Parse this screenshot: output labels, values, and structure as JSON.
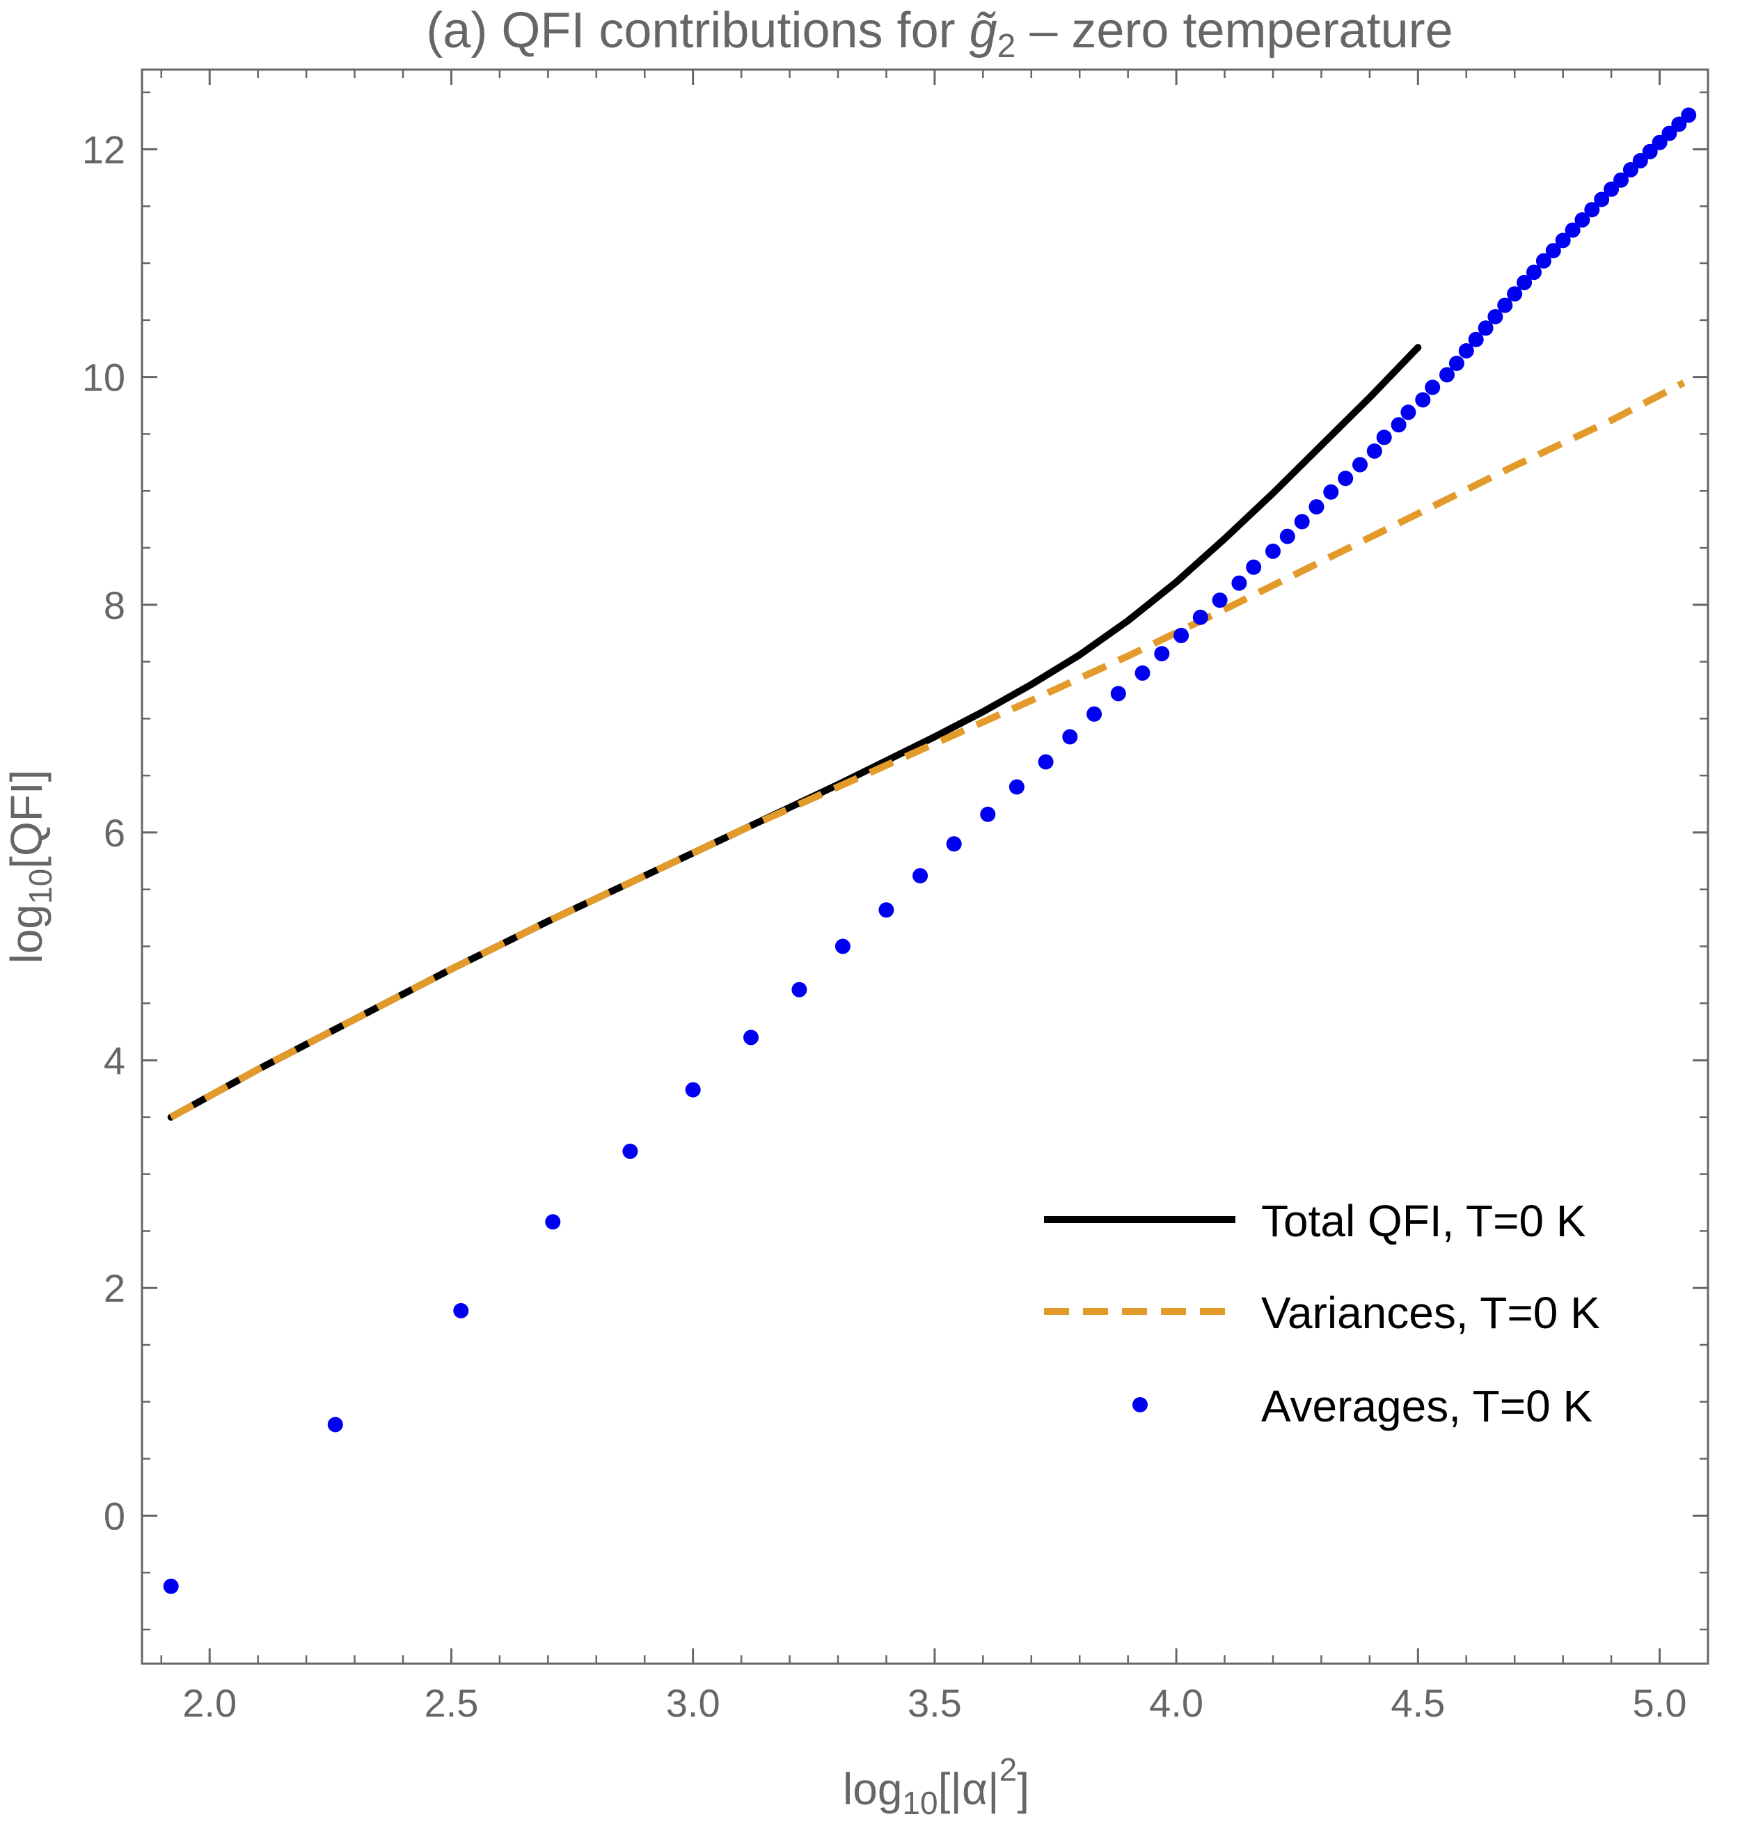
{
  "chart_data": {
    "type": "line",
    "title": "(a) QFI contributions for g̃₂ – zero temperature",
    "title_parts": {
      "prefix": "(a) QFI contributions for ",
      "symbol": "g̃",
      "subscript": "2",
      "suffix": " – zero temperature"
    },
    "xlabel": "log10[|α|2]",
    "xlabel_parts": {
      "pre": "log",
      "sub": "10",
      "mid": "[|α|",
      "sup": "2",
      "post": "]"
    },
    "ylabel": "log10[QFI]",
    "ylabel_parts": {
      "pre": "log",
      "sub": "10",
      "post": "[QFI]"
    },
    "xlim": [
      1.86,
      5.1
    ],
    "ylim": [
      -1.3,
      12.7
    ],
    "xticks": [
      2.0,
      2.5,
      3.0,
      3.5,
      4.0,
      4.5,
      5.0
    ],
    "xtick_labels": [
      "2.0",
      "2.5",
      "3.0",
      "3.5",
      "4.0",
      "4.5",
      "5.0"
    ],
    "yticks": [
      0,
      2,
      4,
      6,
      8,
      10,
      12
    ],
    "ytick_labels": [
      "0",
      "2",
      "4",
      "6",
      "8",
      "10",
      "12"
    ],
    "legend_position": "bottom-right",
    "series": [
      {
        "name": "Total QFI, T=0 K",
        "style": "solid",
        "color": "#000000",
        "x": [
          1.92,
          2.1,
          2.3,
          2.5,
          2.7,
          2.9,
          3.1,
          3.3,
          3.5,
          3.6,
          3.7,
          3.8,
          3.9,
          4.0,
          4.1,
          4.2,
          4.3,
          4.4,
          4.5
        ],
        "y": [
          3.5,
          3.92,
          4.36,
          4.8,
          5.22,
          5.62,
          6.02,
          6.42,
          6.84,
          7.06,
          7.3,
          7.56,
          7.86,
          8.2,
          8.58,
          8.98,
          9.4,
          9.82,
          10.26
        ]
      },
      {
        "name": "Variances, T=0 K",
        "style": "dashed",
        "color": "#E29A2A",
        "x": [
          1.92,
          2.1,
          2.3,
          2.5,
          2.7,
          2.9,
          3.1,
          3.3,
          3.5,
          3.7,
          3.9,
          4.1,
          4.3,
          4.5,
          4.7,
          4.9,
          5.05
        ],
        "y": [
          3.5,
          3.92,
          4.36,
          4.8,
          5.22,
          5.62,
          6.02,
          6.4,
          6.78,
          7.16,
          7.55,
          7.96,
          8.38,
          8.8,
          9.22,
          9.62,
          9.95
        ]
      },
      {
        "name": "Averages, T=0 K",
        "style": "points",
        "color": "#0000F0",
        "x": [
          1.92,
          2.26,
          2.52,
          2.71,
          2.87,
          3.0,
          3.12,
          3.22,
          3.31,
          3.4,
          3.47,
          3.54,
          3.61,
          3.67,
          3.73,
          3.78,
          3.83,
          3.88,
          3.93,
          3.97,
          4.01,
          4.05,
          4.09,
          4.13,
          4.16,
          4.2,
          4.23,
          4.26,
          4.29,
          4.32,
          4.35,
          4.38,
          4.41,
          4.43,
          4.46,
          4.48,
          4.51,
          4.53,
          4.56,
          4.58,
          4.6,
          4.62,
          4.64,
          4.66,
          4.68,
          4.7,
          4.72,
          4.74,
          4.76,
          4.78,
          4.8,
          4.82,
          4.84,
          4.86,
          4.88,
          4.9,
          4.92,
          4.94,
          4.96,
          4.98,
          5.0,
          5.02,
          5.04,
          5.06
        ],
        "y": [
          -0.62,
          0.8,
          1.8,
          2.58,
          3.2,
          3.74,
          4.2,
          4.62,
          5.0,
          5.32,
          5.62,
          5.9,
          6.16,
          6.4,
          6.62,
          6.84,
          7.04,
          7.22,
          7.4,
          7.57,
          7.73,
          7.89,
          8.04,
          8.19,
          8.33,
          8.47,
          8.6,
          8.73,
          8.86,
          8.99,
          9.11,
          9.23,
          9.35,
          9.47,
          9.58,
          9.69,
          9.8,
          9.91,
          10.02,
          10.12,
          10.23,
          10.33,
          10.43,
          10.53,
          10.63,
          10.73,
          10.83,
          10.92,
          11.02,
          11.11,
          11.2,
          11.29,
          11.38,
          11.47,
          11.56,
          11.65,
          11.73,
          11.82,
          11.9,
          11.98,
          12.06,
          12.14,
          12.22,
          12.3
        ]
      }
    ]
  }
}
